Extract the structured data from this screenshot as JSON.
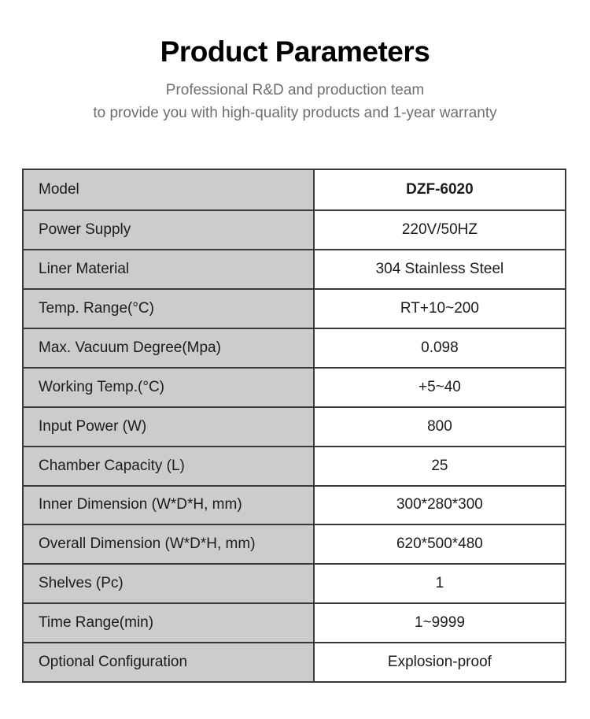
{
  "page": {
    "title": "Product Parameters",
    "subtitle_line1": "Professional R&D and production team",
    "subtitle_line2": "to provide you with high-quality products and 1-year warranty"
  },
  "table": {
    "rows": [
      {
        "label": "Model",
        "value": "DZF-6020"
      },
      {
        "label": "Power Supply",
        "value": "220V/50HZ"
      },
      {
        "label": "Liner Material",
        "value": "304 Stainless Steel"
      },
      {
        "label": "Temp. Range(°C)",
        "value": "RT+10~200"
      },
      {
        "label": "Max. Vacuum Degree(Mpa)",
        "value": "0.098"
      },
      {
        "label": "Working Temp.(°C)",
        "value": "+5~40"
      },
      {
        "label": "Input Power (W)",
        "value": "800"
      },
      {
        "label": "Chamber Capacity (L)",
        "value": "25"
      },
      {
        "label": "Inner Dimension (W*D*H, mm)",
        "value": "300*280*300"
      },
      {
        "label": "Overall Dimension (W*D*H, mm)",
        "value": "620*500*480"
      },
      {
        "label": "Shelves (Pc)",
        "value": "1"
      },
      {
        "label": "Time Range(min)",
        "value": "1~9999"
      },
      {
        "label": "Optional Configuration",
        "value": "Explosion-proof"
      }
    ]
  },
  "colors": {
    "label_cell_bg": "#cccccc",
    "table_border": "#3a3a3a",
    "title_text": "#000000",
    "subtitle_text": "#6e6e6e",
    "table_text": "#1c1c1c"
  }
}
